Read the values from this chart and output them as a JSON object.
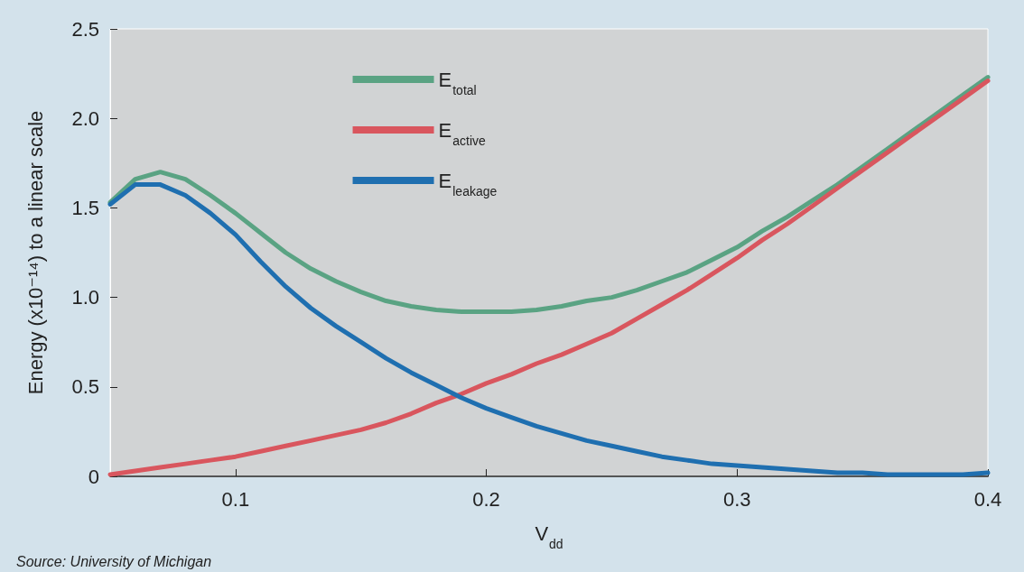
{
  "chart_data": {
    "type": "line",
    "xlabel": "V$_{dd}$",
    "ylabel": "Energy (x10⁻¹⁴) to a linear scale",
    "annotations": [
      "Source: University of Michigan"
    ],
    "x": [
      0.05,
      0.06,
      0.07,
      0.08,
      0.09,
      0.1,
      0.11,
      0.12,
      0.13,
      0.14,
      0.15,
      0.16,
      0.17,
      0.18,
      0.19,
      0.2,
      0.21,
      0.22,
      0.23,
      0.24,
      0.25,
      0.26,
      0.27,
      0.28,
      0.29,
      0.3,
      0.31,
      0.32,
      0.33,
      0.34,
      0.35,
      0.36,
      0.37,
      0.38,
      0.39,
      0.4
    ],
    "series": [
      {
        "name": "E$_{total}$",
        "color": "#5aa383",
        "values": [
          1.53,
          1.66,
          1.7,
          1.66,
          1.57,
          1.47,
          1.36,
          1.25,
          1.16,
          1.09,
          1.03,
          0.98,
          0.95,
          0.93,
          0.92,
          0.92,
          0.92,
          0.93,
          0.95,
          0.98,
          1.0,
          1.04,
          1.09,
          1.14,
          1.21,
          1.28,
          1.37,
          1.45,
          1.54,
          1.63,
          1.73,
          1.83,
          1.93,
          2.03,
          2.13,
          2.23
        ]
      },
      {
        "name": "E$_{active}$",
        "color": "#d9565e",
        "values": [
          0.01,
          0.03,
          0.05,
          0.07,
          0.09,
          0.11,
          0.14,
          0.17,
          0.2,
          0.23,
          0.26,
          0.3,
          0.35,
          0.41,
          0.46,
          0.52,
          0.57,
          0.63,
          0.68,
          0.74,
          0.8,
          0.88,
          0.96,
          1.04,
          1.13,
          1.22,
          1.32,
          1.41,
          1.51,
          1.61,
          1.71,
          1.81,
          1.91,
          2.01,
          2.11,
          2.21
        ]
      },
      {
        "name": "E$_{leakage}$",
        "color": "#1f6fb0",
        "values": [
          1.52,
          1.63,
          1.63,
          1.57,
          1.47,
          1.35,
          1.2,
          1.06,
          0.94,
          0.84,
          0.75,
          0.66,
          0.58,
          0.51,
          0.44,
          0.38,
          0.33,
          0.28,
          0.24,
          0.2,
          0.17,
          0.14,
          0.11,
          0.09,
          0.07,
          0.06,
          0.05,
          0.04,
          0.03,
          0.02,
          0.02,
          0.01,
          0.01,
          0.01,
          0.01,
          0.02
        ]
      }
    ],
    "xlim": [
      0.05,
      0.4
    ],
    "xticks": [
      0.1,
      0.2,
      0.3,
      0.4
    ],
    "ylim": [
      0,
      2.5
    ],
    "yticks": [
      0,
      0.5,
      {
        "value": 1,
        "label": "1.0"
      },
      1.5,
      {
        "value": 2,
        "label": "2.0"
      },
      2.5
    ],
    "grid": false,
    "legend": "top",
    "marker": "none",
    "line_style": "solid"
  }
}
